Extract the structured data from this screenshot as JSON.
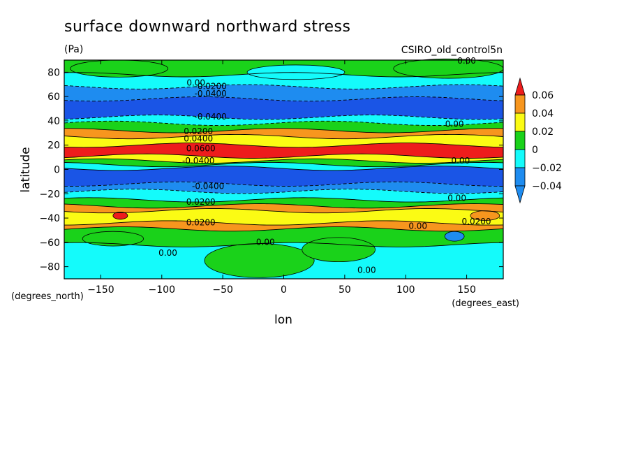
{
  "chart_data": {
    "type": "heatmap",
    "title": "surface downward northward stress",
    "units": "(Pa)",
    "dataset_label": "CSIRO_old_control5n",
    "xlabel": "lon",
    "ylabel": "latitude",
    "x_units": "(degrees_east)",
    "y_units": "(degrees_north)",
    "xlim": [
      -180,
      180
    ],
    "ylim": [
      -90,
      90
    ],
    "x_ticks": [
      -150,
      -100,
      -50,
      0,
      50,
      100,
      150
    ],
    "y_ticks": [
      80,
      60,
      40,
      20,
      0,
      -20,
      -40,
      -60,
      -80
    ],
    "colorbar": {
      "levels": [
        0.06,
        0.04,
        0.02,
        0,
        -0.02,
        -0.04
      ],
      "tick_labels": [
        "0.06",
        "0.04",
        "0.02",
        "0",
        "−0.02",
        "−0.04"
      ],
      "colors": [
        "#ee1c1c",
        "#f7961e",
        "#fbfb14",
        "#1ad21a",
        "#14fbfb",
        "#1e8cf0"
      ],
      "extend": "both"
    },
    "zonal_bands": [
      {
        "lat_from": 90,
        "lat_to": 78,
        "class": "0 to 0.02"
      },
      {
        "lat_from": 78,
        "lat_to": 68,
        "class": "-0.02 to 0"
      },
      {
        "lat_from": 68,
        "lat_to": 58,
        "class": "-0.04 to -0.02"
      },
      {
        "lat_from": 58,
        "lat_to": 43,
        "class": "< -0.04"
      },
      {
        "lat_from": 43,
        "lat_to": 38,
        "class": "-0.02 to 0"
      },
      {
        "lat_from": 38,
        "lat_to": 32,
        "class": "0 to 0.02"
      },
      {
        "lat_from": 32,
        "lat_to": 27,
        "class": "0.02 to 0.04"
      },
      {
        "lat_from": 27,
        "lat_to": 20,
        "class": "0.04 to 0.06"
      },
      {
        "lat_from": 20,
        "lat_to": 11,
        "class": "> 0.06"
      },
      {
        "lat_from": 11,
        "lat_to": 7,
        "class": "0.04 to 0.06"
      },
      {
        "lat_from": 7,
        "lat_to": 4,
        "class": "0 to 0.02"
      },
      {
        "lat_from": 4,
        "lat_to": 1,
        "class": "-0.02 to 0"
      },
      {
        "lat_from": 1,
        "lat_to": -12,
        "class": "< -0.04"
      },
      {
        "lat_from": -12,
        "lat_to": -18,
        "class": "-0.04 to -0.02"
      },
      {
        "lat_from": -18,
        "lat_to": -25,
        "class": "-0.02 to 0"
      },
      {
        "lat_from": -25,
        "lat_to": -30,
        "class": "0 to 0.02"
      },
      {
        "lat_from": -30,
        "lat_to": -34,
        "class": "0.02 to 0.04"
      },
      {
        "lat_from": -34,
        "lat_to": -44,
        "class": "0.04 to 0.06"
      },
      {
        "lat_from": -44,
        "lat_to": -49,
        "class": "0.02 to 0.04"
      },
      {
        "lat_from": -49,
        "lat_to": -62,
        "class": "0 to 0.02"
      },
      {
        "lat_from": -62,
        "lat_to": -90,
        "class": "-0.02 to 0"
      }
    ],
    "contour_labels": [
      {
        "text": "0.00",
        "lon": 150,
        "lat": 87
      },
      {
        "text": "0.00",
        "lon": -72,
        "lat": 69
      },
      {
        "text": "-0.0200",
        "lon": -60,
        "lat": 66
      },
      {
        "text": "-0.0400",
        "lon": -60,
        "lat": 60
      },
      {
        "text": "-0.0400",
        "lon": -60,
        "lat": 41
      },
      {
        "text": "0.00",
        "lon": 140,
        "lat": 35
      },
      {
        "text": "0.0200",
        "lon": -70,
        "lat": 29
      },
      {
        "text": "0.0400",
        "lon": -70,
        "lat": 23
      },
      {
        "text": "0.0600",
        "lon": -68,
        "lat": 15
      },
      {
        "text": "0.00",
        "lon": 145,
        "lat": 5
      },
      {
        "text": "-0.0400",
        "lon": -70,
        "lat": 5
      },
      {
        "text": "-0.0400",
        "lon": -62,
        "lat": -16
      },
      {
        "text": "0.00",
        "lon": 142,
        "lat": -26
      },
      {
        "text": "0.0200",
        "lon": -68,
        "lat": -29
      },
      {
        "text": "0.0200",
        "lon": -68,
        "lat": -46
      },
      {
        "text": "0.0200",
        "lon": 158,
        "lat": -45
      },
      {
        "text": "0.00",
        "lon": 110,
        "lat": -49
      },
      {
        "text": "0.00",
        "lon": -95,
        "lat": -71
      },
      {
        "text": "0.00",
        "lon": -15,
        "lat": -62
      },
      {
        "text": "0.00",
        "lon": 68,
        "lat": -85
      }
    ]
  }
}
